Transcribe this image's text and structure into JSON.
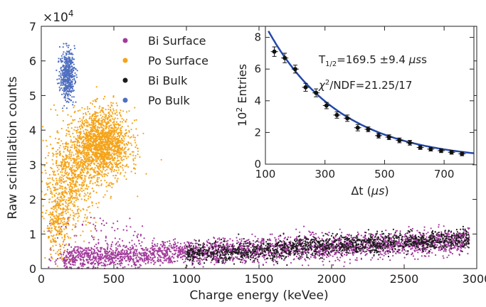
{
  "chart_data": [
    {
      "type": "scatter",
      "xlabel": "Charge energy (keVee)",
      "ylabel": "Raw scintillation counts",
      "y_multiplier_label": "×10",
      "y_multiplier_exp": "4",
      "xlim": [
        0,
        3000
      ],
      "ylim": [
        0,
        7
      ],
      "x_ticks": [
        "0",
        "500",
        "1000",
        "1500",
        "2000",
        "2500",
        "3000"
      ],
      "y_ticks": [
        "0",
        "1",
        "2",
        "3",
        "4",
        "5",
        "6",
        "7"
      ],
      "legend_position": "top-center",
      "series": [
        {
          "name": "Bi Surface",
          "color": "#a23a9b",
          "clusters": [
            {
              "x_range": [
                150,
                2950
              ],
              "y_at_x_start": 0.3,
              "y_at_x_end": 0.8,
              "y_spread": 0.35,
              "count": 3000
            },
            {
              "x_range": [
                50,
                700
              ],
              "y_range": [
                0,
                1.5
              ],
              "count": 120
            }
          ]
        },
        {
          "name": "Po Surface",
          "color": "#f5a318",
          "clusters": [
            {
              "x_center": 420,
              "y_center": 3.6,
              "x_sigma": 95,
              "y_sigma": 0.5,
              "count": 1600
            },
            {
              "x_center": 200,
              "y_center": 2.6,
              "x_sigma": 90,
              "y_sigma": 0.7,
              "count": 700
            },
            {
              "x_center": 110,
              "y_center": 1.3,
              "x_sigma": 40,
              "y_sigma": 0.5,
              "count": 250
            }
          ]
        },
        {
          "name": "Bi Bulk",
          "color": "#1a1a1a",
          "clusters": [
            {
              "x_range": [
                1000,
                2950
              ],
              "y_at_x_start": 0.4,
              "y_at_x_end": 0.9,
              "y_spread": 0.28,
              "count": 1300
            }
          ]
        },
        {
          "name": "Po Bulk",
          "color": "#4f6fc0",
          "clusters": [
            {
              "x_center": 180,
              "y_center": 5.6,
              "x_sigma": 25,
              "y_sigma": 0.35,
              "count": 500
            }
          ]
        }
      ]
    },
    {
      "type": "line",
      "subtype": "inset-histogram-with-fit",
      "xlabel_prefix": "Δt (",
      "xlabel_unit": "μs",
      "xlabel_suffix": ")",
      "ylabel_base": "10",
      "ylabel_exp": "2",
      "ylabel_text": "Entries",
      "xlim": [
        100,
        800
      ],
      "ylim": [
        0,
        8.7
      ],
      "x_ticks": [
        "100",
        "300",
        "500",
        "700"
      ],
      "y_ticks": [
        "0",
        "2",
        "4",
        "6",
        "8"
      ],
      "points": [
        {
          "x": 130,
          "y": 7.1,
          "err": 0.3
        },
        {
          "x": 165,
          "y": 6.7,
          "err": 0.3
        },
        {
          "x": 200,
          "y": 6.0,
          "err": 0.25
        },
        {
          "x": 235,
          "y": 4.85,
          "err": 0.25
        },
        {
          "x": 270,
          "y": 4.5,
          "err": 0.25
        },
        {
          "x": 305,
          "y": 3.7,
          "err": 0.2
        },
        {
          "x": 340,
          "y": 3.1,
          "err": 0.2
        },
        {
          "x": 375,
          "y": 2.9,
          "err": 0.2
        },
        {
          "x": 410,
          "y": 2.3,
          "err": 0.2
        },
        {
          "x": 445,
          "y": 2.2,
          "err": 0.15
        },
        {
          "x": 480,
          "y": 1.8,
          "err": 0.15
        },
        {
          "x": 515,
          "y": 1.7,
          "err": 0.15
        },
        {
          "x": 550,
          "y": 1.5,
          "err": 0.15
        },
        {
          "x": 585,
          "y": 1.35,
          "err": 0.15
        },
        {
          "x": 620,
          "y": 1.05,
          "err": 0.12
        },
        {
          "x": 655,
          "y": 0.95,
          "err": 0.12
        },
        {
          "x": 690,
          "y": 0.85,
          "err": 0.12
        },
        {
          "x": 725,
          "y": 0.75,
          "err": 0.12
        },
        {
          "x": 760,
          "y": 0.65,
          "err": 0.12
        }
      ],
      "fit": {
        "color": "#2549a8",
        "amplitude_at_100": 8.4,
        "half_life_us": 169.5,
        "baseline": 0.2
      },
      "annotation_t": {
        "prefix": "T",
        "sub": "1/2",
        "value": "=169.5 ±9.4 ",
        "unit": "μs"
      },
      "annotation_chi": {
        "symbol": "χ",
        "sup": "2",
        "text": "/NDF=21.25/17"
      }
    }
  ]
}
